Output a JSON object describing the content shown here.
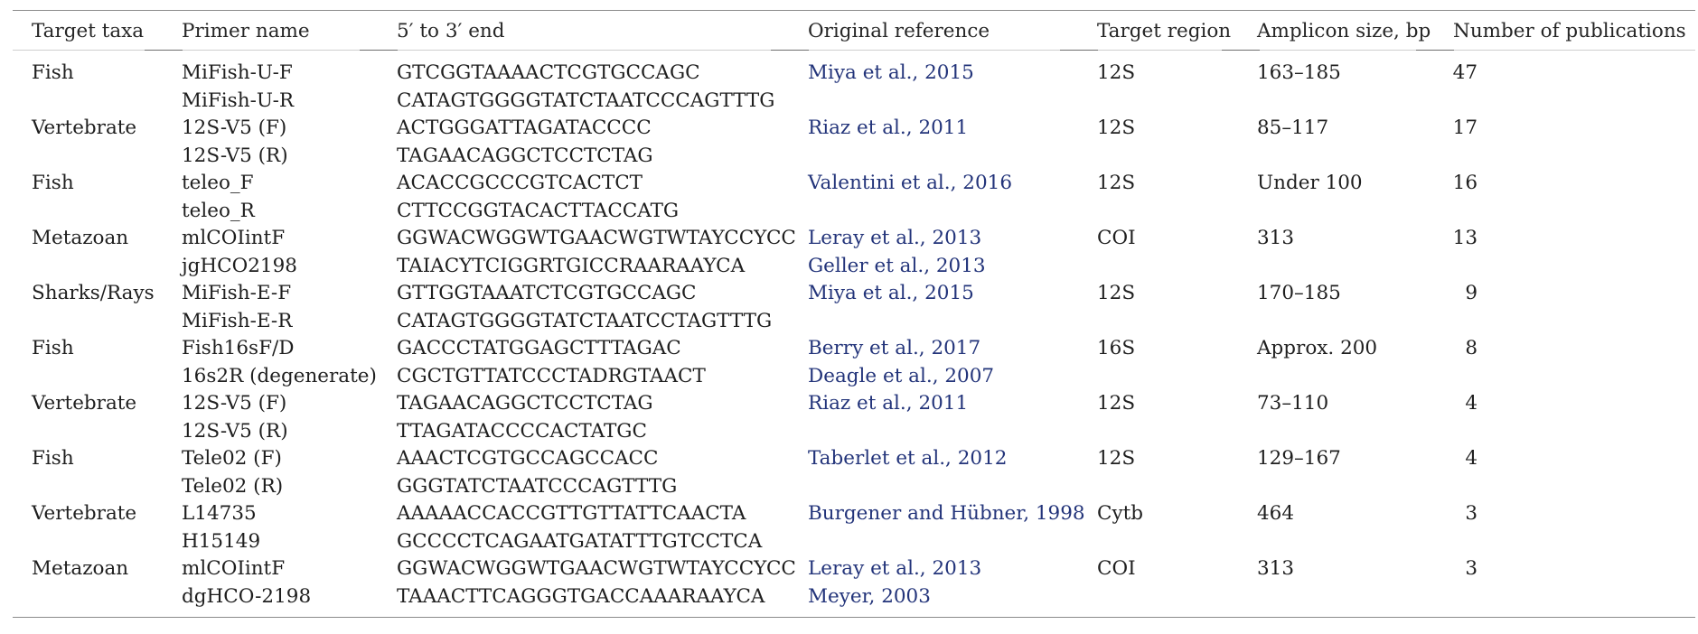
{
  "columns": [
    "Target taxa",
    "Primer name",
    "5′ to 3′ end",
    "Original reference",
    "Target region",
    "Amplicon size, bp",
    "Number of publications"
  ],
  "rows": [
    {
      "taxa": "Fish",
      "primers": [
        "MiFish-U-F",
        "MiFish-U-R"
      ],
      "sequences": [
        "GTCGGTAAAACTCGTGCCAGC",
        "CATAGTGGGGTATCTAATCCCAGTTTG"
      ],
      "references": [
        "Miya et al., 2015",
        ""
      ],
      "region": "12S",
      "amplicon": "163–185",
      "publications": "47"
    },
    {
      "taxa": "Vertebrate",
      "primers": [
        "12S-V5 (F)",
        "12S-V5 (R)"
      ],
      "sequences": [
        "ACTGGGATTAGATACCCC",
        "TAGAACAGGCTCCTCTAG"
      ],
      "references": [
        "Riaz et al., 2011",
        ""
      ],
      "region": "12S",
      "amplicon": "85–117",
      "publications": "17"
    },
    {
      "taxa": "Fish",
      "primers": [
        "teleo_F",
        "teleo_R"
      ],
      "sequences": [
        "ACACCGCCCGTCACTCT",
        "CTTCCGGTACACTTACCATG"
      ],
      "references": [
        "Valentini et al., 2016",
        ""
      ],
      "region": "12S",
      "amplicon": "Under 100",
      "publications": "16"
    },
    {
      "taxa": "Metazoan",
      "primers": [
        "mlCOIintF",
        "jgHCO2198"
      ],
      "sequences": [
        "GGWACWGGWTGAACWGTWTAYCCYCC",
        "TAIACYTCIGGRTGICCRAARAAYCA"
      ],
      "references": [
        "Leray et al., 2013",
        "Geller et al., 2013"
      ],
      "region": "COI",
      "amplicon": "313",
      "publications": "13"
    },
    {
      "taxa": "Sharks/Rays",
      "primers": [
        "MiFish-E-F",
        "MiFish-E-R"
      ],
      "sequences": [
        "GTTGGTAAATCTCGTGCCAGC",
        "CATAGTGGGGTATCTAATCCTAGTTTG"
      ],
      "references": [
        "Miya et al., 2015",
        ""
      ],
      "region": "12S",
      "amplicon": "170–185",
      "publications": "9"
    },
    {
      "taxa": "Fish",
      "primers": [
        "Fish16sF/D",
        "16s2R (degenerate)"
      ],
      "sequences": [
        "GACCCTATGGAGCTTTAGAC",
        "CGCTGTTATCCCTADRGTAACT"
      ],
      "references": [
        "Berry et al., 2017",
        "Deagle et al., 2007"
      ],
      "region": "16S",
      "amplicon": "Approx. 200",
      "publications": "8"
    },
    {
      "taxa": "Vertebrate",
      "primers": [
        "12S-V5 (F)",
        "12S-V5 (R)"
      ],
      "sequences": [
        "TAGAACAGGCTCCTCTAG",
        "TTAGATACCCCACTATGC"
      ],
      "references": [
        "Riaz et al., 2011",
        ""
      ],
      "region": "12S",
      "amplicon": "73–110",
      "publications": "4"
    },
    {
      "taxa": "Fish",
      "primers": [
        "Tele02 (F)",
        "Tele02 (R)"
      ],
      "sequences": [
        "AAACTCGTGCCAGCCACC",
        "GGGTATCTAATCCCAGTTTG"
      ],
      "references": [
        "Taberlet et al., 2012",
        ""
      ],
      "region": "12S",
      "amplicon": "129–167",
      "publications": "4"
    },
    {
      "taxa": "Vertebrate",
      "primers": [
        "L14735",
        "H15149"
      ],
      "sequences": [
        "AAAAACCACCGTTGTTATTCAACTA",
        "GCCCCTCAGAATGATATTTGTCCTCA"
      ],
      "references": [
        "Burgener and Hübner, 1998",
        ""
      ],
      "region": "Cytb",
      "amplicon": "464",
      "publications": "3"
    },
    {
      "taxa": "Metazoan",
      "primers": [
        "mlCOIintF",
        "dgHCO-2198"
      ],
      "sequences": [
        "GGWACWGGWTGAACWGTWTAYCCYCC",
        "TAAACTTCAGGGTGACCAAARAAYCA"
      ],
      "references": [
        "Leray et al., 2013",
        "Meyer, 2003"
      ],
      "region": "COI",
      "amplicon": "313",
      "publications": "3"
    }
  ],
  "colors": {
    "text": "#1f1f1f",
    "reference_link": "#23347a",
    "rule": "#8a8a8a"
  }
}
